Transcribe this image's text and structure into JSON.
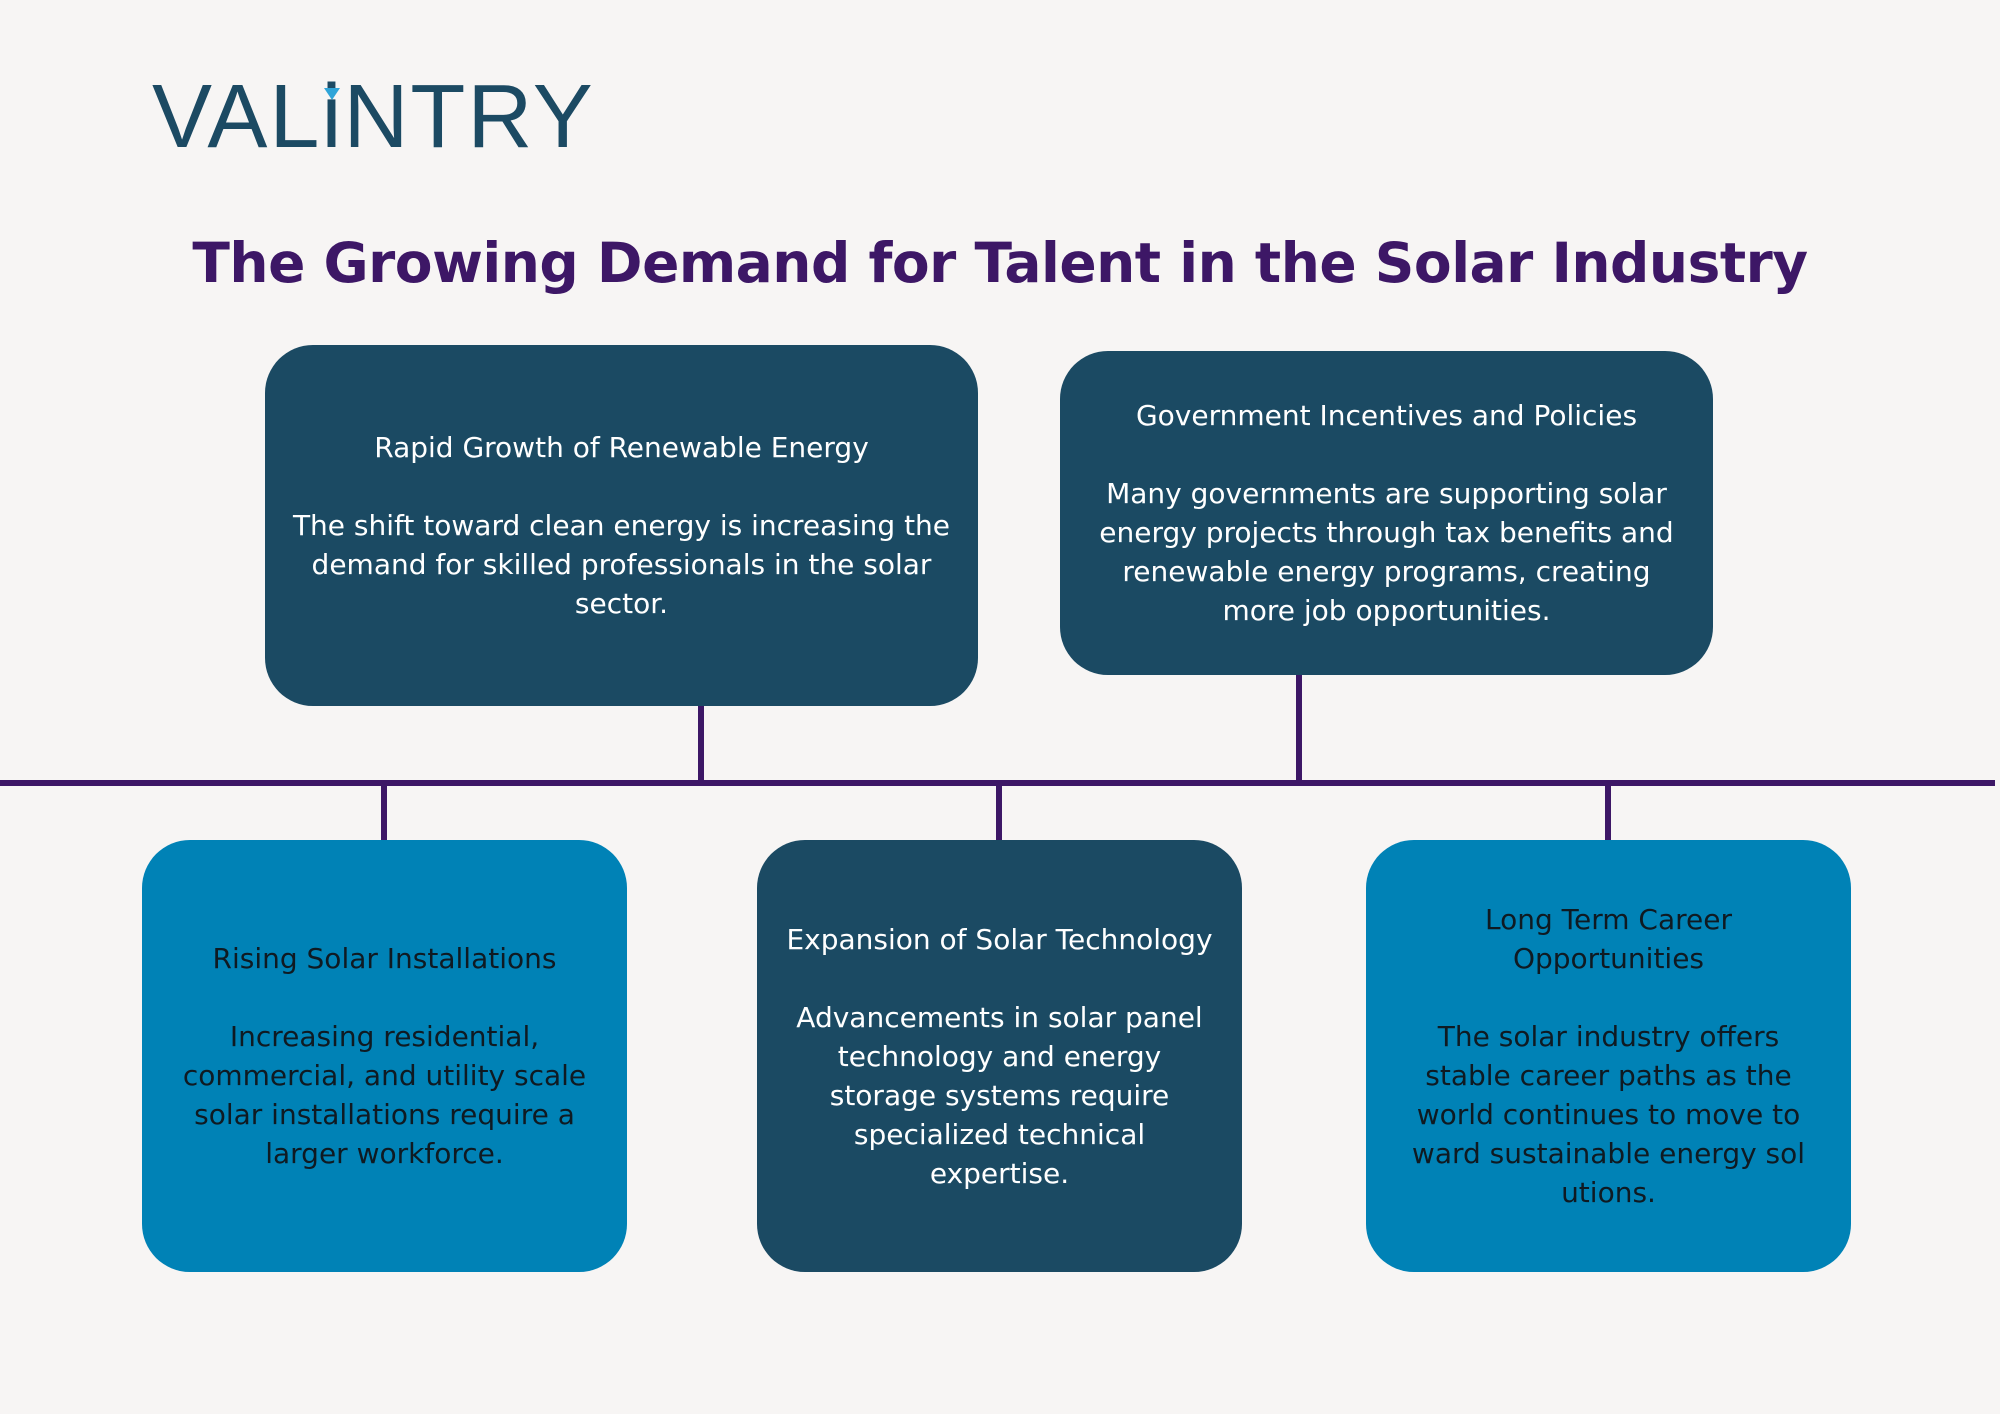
{
  "logo": {
    "text_before": "VAL",
    "text_i": "i",
    "text_after": "NTRY"
  },
  "title": "The Growing Demand for Talent in the Solar Industry",
  "colors": {
    "background": "#f7f5f4",
    "title": "#3d1766",
    "connector": "#3d1766",
    "dark_box": "#1b4a63",
    "light_box": "#0082b6",
    "logo": "#1c4a63",
    "logo_accent": "#2fa4d8"
  },
  "boxes": {
    "rapid_growth": {
      "heading": "Rapid Growth of Renewable Energy",
      "text": "The shift toward clean energy is increasing the demand for skilled professionals in the solar sector."
    },
    "government": {
      "heading": "Government Incentives and Policies",
      "text": "Many governments are supporting solar energy projects through tax benefits and renewable energy programs, creating more job opportunities."
    },
    "rising_installations": {
      "heading": "Rising Solar Installations",
      "text": "Increasing residential, commercial, and utility scale solar installations require a larger workforce."
    },
    "expansion_technology": {
      "heading": "Expansion of Solar Technology",
      "text": "Advancements in solar panel technology and energy storage systems require specialized technical expertise."
    },
    "long_term": {
      "heading": "Long Term Career Opportunities",
      "text": "The solar industry offers stable career paths as the world continues to move to ward sustainable energy sol utions."
    }
  }
}
